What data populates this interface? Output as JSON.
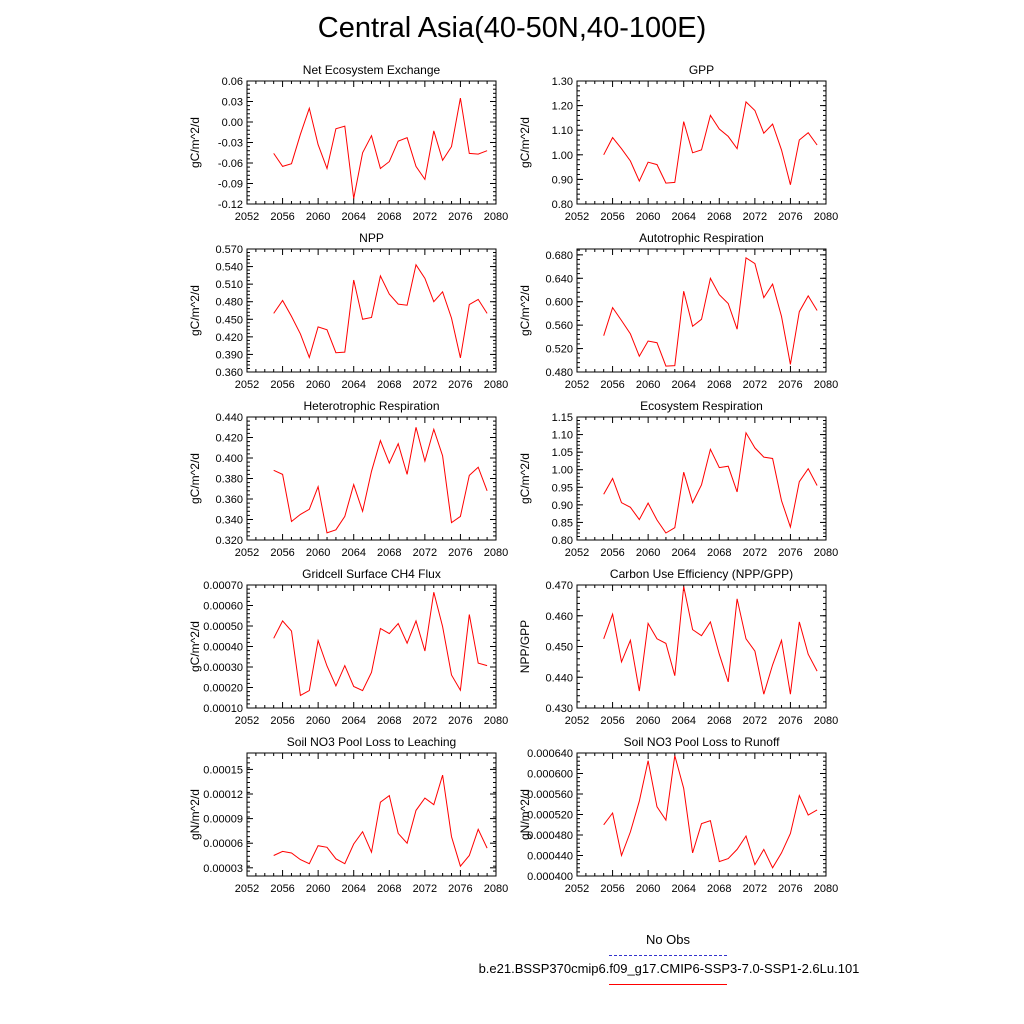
{
  "page": {
    "title": "Central Asia(40-50N,40-100E)"
  },
  "legend": {
    "entries": [
      {
        "label": "No Obs",
        "color": "#3333cc",
        "style": "dashed"
      },
      {
        "label": "b.e21.BSSP370cmip6.f09_g17.CMIP6-SSP3-7.0-SSP1-2.6Lu.101",
        "color": "#ff0000",
        "style": "solid"
      }
    ]
  },
  "chart_data": [
    {
      "type": "line",
      "title": "Net Ecosystem Exchange",
      "ylabel": "gC/m^2/d",
      "xlim": [
        2052,
        2080
      ],
      "xticks": [
        "2052",
        "2056",
        "2060",
        "2064",
        "2068",
        "2072",
        "2076",
        "2080"
      ],
      "ylim": [
        -0.12,
        0.06
      ],
      "yticks": [
        "-0.12",
        "-0.09",
        "-0.06",
        "-0.03",
        "0.00",
        "0.03",
        "0.06"
      ],
      "series": [
        {
          "color": "#ff0000",
          "x": [
            2055,
            2056,
            2057,
            2058,
            2059,
            2060,
            2061,
            2062,
            2063,
            2064,
            2065,
            2066,
            2067,
            2068,
            2069,
            2070,
            2071,
            2072,
            2073,
            2074,
            2075,
            2076,
            2077,
            2078,
            2079
          ],
          "values": [
            -0.046,
            -0.065,
            -0.061,
            -0.018,
            0.02,
            -0.033,
            -0.068,
            -0.01,
            -0.006,
            -0.112,
            -0.045,
            -0.02,
            -0.068,
            -0.058,
            -0.028,
            -0.023,
            -0.065,
            -0.084,
            -0.013,
            -0.056,
            -0.036,
            0.035,
            -0.046,
            -0.047,
            -0.042
          ]
        }
      ]
    },
    {
      "type": "line",
      "title": "GPP",
      "ylabel": "gC/m^2/d",
      "xlim": [
        2052,
        2080
      ],
      "xticks": [
        "2052",
        "2056",
        "2060",
        "2064",
        "2068",
        "2072",
        "2076",
        "2080"
      ],
      "ylim": [
        0.8,
        1.3
      ],
      "yticks": [
        "0.80",
        "0.90",
        "1.00",
        "1.10",
        "1.20",
        "1.30"
      ],
      "series": [
        {
          "color": "#ff0000",
          "x": [
            2055,
            2056,
            2057,
            2058,
            2059,
            2060,
            2061,
            2062,
            2063,
            2064,
            2065,
            2066,
            2067,
            2068,
            2069,
            2070,
            2071,
            2072,
            2073,
            2074,
            2075,
            2076,
            2077,
            2078,
            2079
          ],
          "values": [
            1.0,
            1.07,
            1.025,
            0.975,
            0.893,
            0.97,
            0.96,
            0.885,
            0.888,
            1.135,
            1.008,
            1.02,
            1.16,
            1.105,
            1.075,
            1.025,
            1.215,
            1.18,
            1.088,
            1.125,
            1.02,
            0.878,
            1.06,
            1.09,
            1.04
          ]
        }
      ]
    },
    {
      "type": "line",
      "title": "NPP",
      "ylabel": "gC/m^2/d",
      "xlim": [
        2052,
        2080
      ],
      "xticks": [
        "2052",
        "2056",
        "2060",
        "2064",
        "2068",
        "2072",
        "2076",
        "2080"
      ],
      "ylim": [
        0.36,
        0.57
      ],
      "yticks": [
        "0.360",
        "0.390",
        "0.420",
        "0.450",
        "0.480",
        "0.510",
        "0.540",
        "0.570"
      ],
      "series": [
        {
          "color": "#ff0000",
          "x": [
            2055,
            2056,
            2057,
            2058,
            2059,
            2060,
            2061,
            2062,
            2063,
            2064,
            2065,
            2066,
            2067,
            2068,
            2069,
            2070,
            2071,
            2072,
            2073,
            2074,
            2075,
            2076,
            2077,
            2078,
            2079
          ],
          "values": [
            0.46,
            0.482,
            0.455,
            0.425,
            0.385,
            0.437,
            0.432,
            0.393,
            0.394,
            0.517,
            0.45,
            0.453,
            0.524,
            0.493,
            0.476,
            0.474,
            0.543,
            0.52,
            0.48,
            0.497,
            0.452,
            0.384,
            0.475,
            0.484,
            0.46
          ]
        }
      ]
    },
    {
      "type": "line",
      "title": "Autotrophic Respiration",
      "ylabel": "gC/m^2/d",
      "xlim": [
        2052,
        2080
      ],
      "xticks": [
        "2052",
        "2056",
        "2060",
        "2064",
        "2068",
        "2072",
        "2076",
        "2080"
      ],
      "ylim": [
        0.48,
        0.69
      ],
      "yticks": [
        "0.480",
        "0.520",
        "0.560",
        "0.600",
        "0.640",
        "0.680"
      ],
      "series": [
        {
          "color": "#ff0000",
          "x": [
            2055,
            2056,
            2057,
            2058,
            2059,
            2060,
            2061,
            2062,
            2063,
            2064,
            2065,
            2066,
            2067,
            2068,
            2069,
            2070,
            2071,
            2072,
            2073,
            2074,
            2075,
            2076,
            2077,
            2078,
            2079
          ],
          "values": [
            0.542,
            0.59,
            0.568,
            0.545,
            0.507,
            0.533,
            0.53,
            0.49,
            0.491,
            0.618,
            0.558,
            0.57,
            0.64,
            0.612,
            0.597,
            0.553,
            0.675,
            0.665,
            0.607,
            0.63,
            0.575,
            0.493,
            0.583,
            0.61,
            0.585
          ]
        }
      ]
    },
    {
      "type": "line",
      "title": "Heterotrophic Respiration",
      "ylabel": "gC/m^2/d",
      "xlim": [
        2052,
        2080
      ],
      "xticks": [
        "2052",
        "2056",
        "2060",
        "2064",
        "2068",
        "2072",
        "2076",
        "2080"
      ],
      "ylim": [
        0.32,
        0.44
      ],
      "yticks": [
        "0.320",
        "0.340",
        "0.360",
        "0.380",
        "0.400",
        "0.420",
        "0.440"
      ],
      "series": [
        {
          "color": "#ff0000",
          "x": [
            2055,
            2056,
            2057,
            2058,
            2059,
            2060,
            2061,
            2062,
            2063,
            2064,
            2065,
            2066,
            2067,
            2068,
            2069,
            2070,
            2071,
            2072,
            2073,
            2074,
            2075,
            2076,
            2077,
            2078,
            2079
          ],
          "values": [
            0.388,
            0.384,
            0.338,
            0.345,
            0.35,
            0.372,
            0.327,
            0.33,
            0.343,
            0.374,
            0.348,
            0.387,
            0.417,
            0.395,
            0.414,
            0.384,
            0.43,
            0.397,
            0.428,
            0.402,
            0.337,
            0.343,
            0.383,
            0.391,
            0.368
          ]
        }
      ]
    },
    {
      "type": "line",
      "title": "Ecosystem Respiration",
      "ylabel": "gC/m^2/d",
      "xlim": [
        2052,
        2080
      ],
      "xticks": [
        "2052",
        "2056",
        "2060",
        "2064",
        "2068",
        "2072",
        "2076",
        "2080"
      ],
      "ylim": [
        0.8,
        1.15
      ],
      "yticks": [
        "0.80",
        "0.85",
        "0.90",
        "0.95",
        "1.00",
        "1.05",
        "1.10",
        "1.15"
      ],
      "series": [
        {
          "color": "#ff0000",
          "x": [
            2055,
            2056,
            2057,
            2058,
            2059,
            2060,
            2061,
            2062,
            2063,
            2064,
            2065,
            2066,
            2067,
            2068,
            2069,
            2070,
            2071,
            2072,
            2073,
            2074,
            2075,
            2076,
            2077,
            2078,
            2079
          ],
          "values": [
            0.93,
            0.975,
            0.906,
            0.893,
            0.858,
            0.905,
            0.857,
            0.82,
            0.835,
            0.993,
            0.906,
            0.957,
            1.058,
            1.006,
            1.01,
            0.937,
            1.105,
            1.062,
            1.036,
            1.032,
            0.912,
            0.837,
            0.966,
            1.003,
            0.955
          ]
        }
      ]
    },
    {
      "type": "line",
      "title": "Gridcell Surface CH4 Flux",
      "ylabel": "gC/m^2/d",
      "xlim": [
        2052,
        2080
      ],
      "xticks": [
        "2052",
        "2056",
        "2060",
        "2064",
        "2068",
        "2072",
        "2076",
        "2080"
      ],
      "ylim": [
        0.0001,
        0.0007
      ],
      "yticks": [
        "0.00010",
        "0.00020",
        "0.00030",
        "0.00040",
        "0.00050",
        "0.00060",
        "0.00070"
      ],
      "series": [
        {
          "color": "#ff0000",
          "x": [
            2055,
            2056,
            2057,
            2058,
            2059,
            2060,
            2061,
            2062,
            2063,
            2064,
            2065,
            2066,
            2067,
            2068,
            2069,
            2070,
            2071,
            2072,
            2073,
            2074,
            2075,
            2076,
            2077,
            2078,
            2079
          ],
          "values": [
            0.00044,
            0.000525,
            0.000475,
            0.000161,
            0.000185,
            0.000429,
            0.000305,
            0.000208,
            0.000307,
            0.000205,
            0.000185,
            0.000274,
            0.000488,
            0.000463,
            0.000512,
            0.000416,
            0.000525,
            0.000378,
            0.000665,
            0.000497,
            0.000261,
            0.000187,
            0.000556,
            0.000319,
            0.000307
          ]
        }
      ]
    },
    {
      "type": "line",
      "title": "Carbon Use Efficiency (NPP/GPP)",
      "ylabel": "NPP/GPP",
      "xlim": [
        2052,
        2080
      ],
      "xticks": [
        "2052",
        "2056",
        "2060",
        "2064",
        "2068",
        "2072",
        "2076",
        "2080"
      ],
      "ylim": [
        0.43,
        0.47
      ],
      "yticks": [
        "0.430",
        "0.440",
        "0.450",
        "0.460",
        "0.470"
      ],
      "series": [
        {
          "color": "#ff0000",
          "x": [
            2055,
            2056,
            2057,
            2058,
            2059,
            2060,
            2061,
            2062,
            2063,
            2064,
            2065,
            2066,
            2067,
            2068,
            2069,
            2070,
            2071,
            2072,
            2073,
            2074,
            2075,
            2076,
            2077,
            2078,
            2079
          ],
          "values": [
            0.4525,
            0.4605,
            0.445,
            0.452,
            0.4355,
            0.4575,
            0.4525,
            0.451,
            0.4405,
            0.4695,
            0.4555,
            0.4535,
            0.458,
            0.4475,
            0.4385,
            0.4655,
            0.4525,
            0.4485,
            0.4345,
            0.444,
            0.452,
            0.4345,
            0.458,
            0.4475,
            0.442
          ]
        }
      ]
    },
    {
      "type": "line",
      "title": "Soil NO3 Pool Loss to Leaching",
      "ylabel": "gN/m^2/d",
      "xlim": [
        2052,
        2080
      ],
      "xticks": [
        "2052",
        "2056",
        "2060",
        "2064",
        "2068",
        "2072",
        "2076",
        "2080"
      ],
      "ylim": [
        2e-05,
        0.00017
      ],
      "yticks": [
        "0.00003",
        "0.00006",
        "0.00009",
        "0.00012",
        "0.00015"
      ],
      "series": [
        {
          "color": "#ff0000",
          "x": [
            2055,
            2056,
            2057,
            2058,
            2059,
            2060,
            2061,
            2062,
            2063,
            2064,
            2065,
            2066,
            2067,
            2068,
            2069,
            2070,
            2071,
            2072,
            2073,
            2074,
            2075,
            2076,
            2077,
            2078,
            2079
          ],
          "values": [
            4.5e-05,
            5e-05,
            4.8e-05,
            4e-05,
            3.5e-05,
            5.7e-05,
            5.5e-05,
            4.1e-05,
            3.5e-05,
            5.9e-05,
            7.4e-05,
            4.9e-05,
            0.00011,
            0.000118,
            7.2e-05,
            6e-05,
            0.0001,
            0.000115,
            0.000107,
            0.000143,
            6.8e-05,
            3.2e-05,
            4.5e-05,
            7.7e-05,
            5.4e-05
          ]
        }
      ]
    },
    {
      "type": "line",
      "title": "Soil NO3 Pool Loss to Runoff",
      "ylabel": "gN/m^2/d",
      "xlim": [
        2052,
        2080
      ],
      "xticks": [
        "2052",
        "2056",
        "2060",
        "2064",
        "2068",
        "2072",
        "2076",
        "2080"
      ],
      "ylim": [
        0.0004,
        0.00064
      ],
      "yticks": [
        "0.000400",
        "0.000440",
        "0.000480",
        "0.000520",
        "0.000560",
        "0.000600",
        "0.000640"
      ],
      "series": [
        {
          "color": "#ff0000",
          "x": [
            2055,
            2056,
            2057,
            2058,
            2059,
            2060,
            2061,
            2062,
            2063,
            2064,
            2065,
            2066,
            2067,
            2068,
            2069,
            2070,
            2071,
            2072,
            2073,
            2074,
            2075,
            2076,
            2077,
            2078,
            2079
          ],
          "values": [
            0.0005,
            0.000523,
            0.00044,
            0.000486,
            0.000546,
            0.000625,
            0.000535,
            0.000509,
            0.000635,
            0.000571,
            0.000445,
            0.000502,
            0.000508,
            0.000428,
            0.000434,
            0.000452,
            0.000478,
            0.000422,
            0.000452,
            0.000416,
            0.000445,
            0.000483,
            0.000557,
            0.000519,
            0.000529
          ]
        }
      ]
    }
  ]
}
